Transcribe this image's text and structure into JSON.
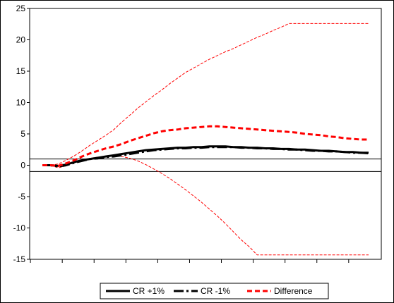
{
  "chart_data": {
    "type": "line",
    "title": "",
    "xlabel": "",
    "ylabel": "",
    "ylim": [
      -15,
      25
    ],
    "yticks": [
      -15,
      -10,
      -5,
      0,
      5,
      10,
      15,
      20,
      25
    ],
    "x": [
      1,
      2,
      3,
      4,
      5,
      6,
      7,
      8,
      9,
      10,
      11,
      12,
      13,
      14,
      15,
      16,
      17,
      18,
      19,
      20,
      21,
      22,
      23,
      24,
      25,
      26,
      27,
      28,
      29,
      30,
      31,
      32,
      33,
      34,
      35,
      36,
      37,
      38,
      39,
      40,
      41,
      42
    ],
    "reference_lines": [
      1,
      -1
    ],
    "grid": false,
    "legend_position": "bottom",
    "series": [
      {
        "name": "CR +1%",
        "color": "#000000",
        "style": "solid",
        "values": [
          0,
          0,
          -0.1,
          0.1,
          0.5,
          0.8,
          1.0,
          1.2,
          1.4,
          1.6,
          1.8,
          2.0,
          2.2,
          2.4,
          2.5,
          2.6,
          2.7,
          2.8,
          2.8,
          2.9,
          2.9,
          3.0,
          3.0,
          3.0,
          2.9,
          2.9,
          2.8,
          2.8,
          2.7,
          2.7,
          2.6,
          2.6,
          2.5,
          2.5,
          2.4,
          2.3,
          2.3,
          2.2,
          2.1,
          2.1,
          2.0,
          2.0
        ]
      },
      {
        "name": "CR -1%",
        "color": "#000000",
        "style": "dashdot",
        "values": [
          0,
          0,
          -0.2,
          0.0,
          0.4,
          0.7,
          1.0,
          1.1,
          1.3,
          1.4,
          1.6,
          1.8,
          2.0,
          2.2,
          2.4,
          2.5,
          2.6,
          2.7,
          2.7,
          2.8,
          2.8,
          2.9,
          2.9,
          2.9,
          2.9,
          2.8,
          2.8,
          2.7,
          2.7,
          2.6,
          2.6,
          2.5,
          2.5,
          2.4,
          2.3,
          2.3,
          2.2,
          2.2,
          2.1,
          2.0,
          2.0,
          1.9
        ]
      },
      {
        "name": "Difference",
        "color": "#ff0000",
        "style": "dashed",
        "values": [
          0,
          0,
          -0.1,
          0.3,
          0.8,
          1.4,
          1.9,
          2.3,
          2.7,
          3.0,
          3.4,
          3.9,
          4.3,
          4.7,
          5.1,
          5.4,
          5.6,
          5.7,
          5.9,
          6.0,
          6.1,
          6.2,
          6.2,
          6.1,
          6.0,
          5.9,
          5.8,
          5.7,
          5.6,
          5.5,
          5.4,
          5.3,
          5.2,
          5.0,
          4.9,
          4.8,
          4.6,
          4.5,
          4.3,
          4.2,
          4.1,
          4.1
        ]
      }
    ],
    "bands": [
      {
        "color": "#ff0000",
        "style": "dashed-thin",
        "values": [
          0,
          0,
          0.2,
          0.8,
          1.5,
          2.3,
          3.2,
          4.0,
          4.8,
          5.7,
          6.9,
          8.0,
          9.1,
          10.1,
          11.1,
          12.0,
          13.0,
          13.9,
          14.8,
          15.5,
          16.2,
          16.9,
          17.5,
          18.1,
          18.6,
          19.2,
          19.8,
          20.4,
          20.9,
          21.5,
          22.0,
          22.6,
          22.6,
          22.6,
          22.6,
          22.6,
          22.6,
          22.6,
          22.6,
          22.6,
          22.6,
          22.6
        ]
      },
      {
        "color": "#ff0000",
        "style": "dashed-thin",
        "values": [
          0,
          0,
          -0.4,
          -0.1,
          0.4,
          0.8,
          1.1,
          1.3,
          1.4,
          1.5,
          1.4,
          1.1,
          0.7,
          0.1,
          -0.6,
          -1.3,
          -2.1,
          -3.0,
          -3.9,
          -4.9,
          -5.9,
          -7.0,
          -8.1,
          -9.3,
          -10.6,
          -11.9,
          -13.0,
          -14.3,
          -14.3,
          -14.3,
          -14.3,
          -14.3,
          -14.3,
          -14.3,
          -14.3,
          -14.3,
          -14.3,
          -14.3,
          -14.3,
          -14.3,
          -14.3,
          -14.3
        ]
      }
    ]
  }
}
